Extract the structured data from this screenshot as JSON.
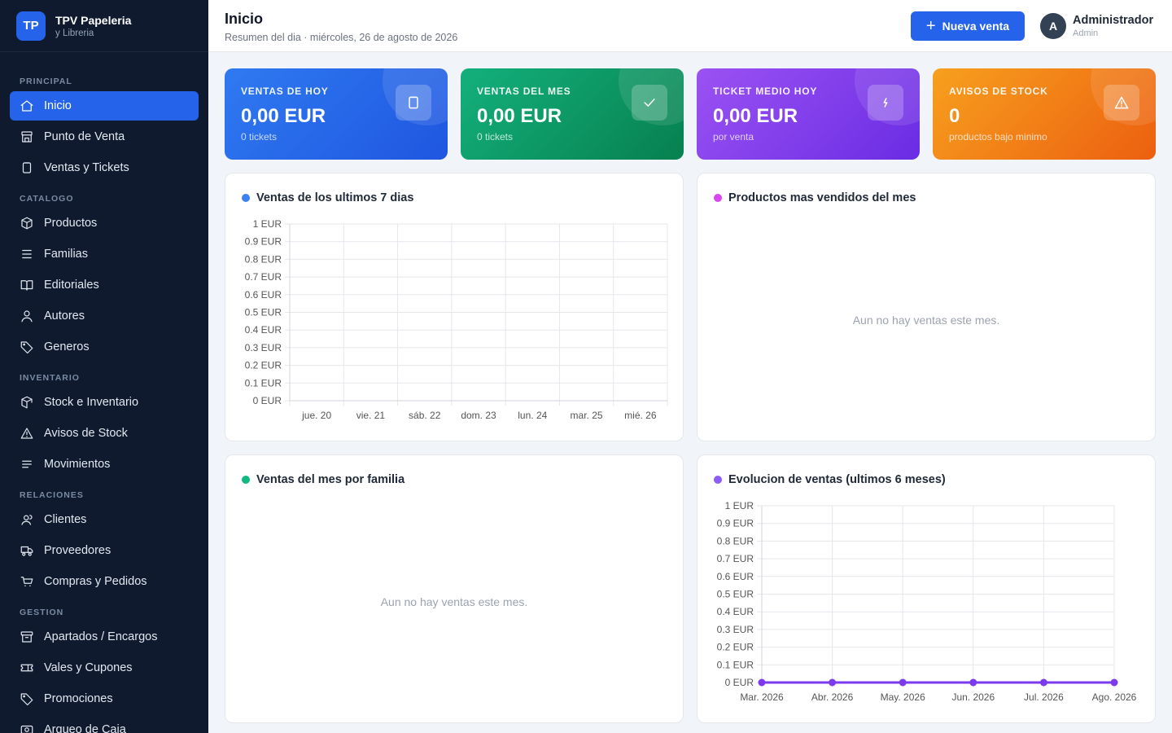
{
  "brand": {
    "logo": "TP",
    "title": "TPV Papeleria",
    "subtitle": "y Libreria"
  },
  "sidebar": {
    "sections": [
      {
        "title": "PRINCIPAL",
        "items": [
          {
            "label": "Inicio",
            "icon": "home-icon",
            "active": true
          },
          {
            "label": "Punto de Venta",
            "icon": "store-icon"
          },
          {
            "label": "Ventas y Tickets",
            "icon": "clipboard-icon"
          }
        ]
      },
      {
        "title": "CATALOGO",
        "items": [
          {
            "label": "Productos",
            "icon": "box-icon"
          },
          {
            "label": "Familias",
            "icon": "list-icon"
          },
          {
            "label": "Editoriales",
            "icon": "book-icon"
          },
          {
            "label": "Autores",
            "icon": "user-icon"
          },
          {
            "label": "Generos",
            "icon": "tag-icon"
          }
        ]
      },
      {
        "title": "INVENTARIO",
        "items": [
          {
            "label": "Stock e Inventario",
            "icon": "cube-icon"
          },
          {
            "label": "Avisos de Stock",
            "icon": "warning-icon"
          },
          {
            "label": "Movimientos",
            "icon": "lines-icon"
          }
        ]
      },
      {
        "title": "RELACIONES",
        "items": [
          {
            "label": "Clientes",
            "icon": "users-icon"
          },
          {
            "label": "Proveedores",
            "icon": "truck-icon"
          },
          {
            "label": "Compras y Pedidos",
            "icon": "cart-icon"
          }
        ]
      },
      {
        "title": "GESTION",
        "items": [
          {
            "label": "Apartados / Encargos",
            "icon": "archive-icon"
          },
          {
            "label": "Vales y Cupones",
            "icon": "ticket-icon"
          },
          {
            "label": "Promociones",
            "icon": "tag-icon"
          },
          {
            "label": "Arqueo de Caja",
            "icon": "cash-icon"
          }
        ]
      }
    ]
  },
  "header": {
    "title": "Inicio",
    "subtitle": "Resumen del dia · miércoles, 26 de agosto de 2026",
    "new_sale_label": "Nueva venta",
    "user_initial": "A",
    "user_name": "Administrador",
    "user_role": "Admin"
  },
  "stats": [
    {
      "label": "VENTAS DE HOY",
      "value": "0,00 EUR",
      "sub": "0 tickets",
      "icon": "clipboard-icon",
      "color": "#2563eb"
    },
    {
      "label": "VENTAS DEL MES",
      "value": "0,00 EUR",
      "sub": "0 tickets",
      "icon": "check-icon",
      "color": "#0f9f6e"
    },
    {
      "label": "TICKET MEDIO HOY",
      "value": "0,00 EUR",
      "sub": "por venta",
      "icon": "bolt-icon",
      "color": "#7c3aed"
    },
    {
      "label": "AVISOS DE STOCK",
      "value": "0",
      "sub": "productos bajo minimo",
      "icon": "warning-icon",
      "color": "#f07a14"
    }
  ],
  "panels": {
    "week": {
      "title": "Ventas de los ultimos 7 dias",
      "dot_color": "#3b82f6"
    },
    "top_products": {
      "title": "Productos mas vendidos del mes",
      "dot_color": "#d946ef",
      "empty": "Aun no hay ventas este mes."
    },
    "by_family": {
      "title": "Ventas del mes por familia",
      "dot_color": "#10b981",
      "empty": "Aun no hay ventas este mes."
    },
    "evolution": {
      "title": "Evolucion de ventas (ultimos 6 meses)",
      "dot_color": "#8b5cf6"
    }
  },
  "chart_data": [
    {
      "type": "bar",
      "title": "Ventas de los ultimos 7 dias",
      "categories": [
        "jue. 20",
        "vie. 21",
        "sáb. 22",
        "dom. 23",
        "lun. 24",
        "mar. 25",
        "mié. 26"
      ],
      "values": [
        0,
        0,
        0,
        0,
        0,
        0,
        0
      ],
      "ylim": [
        0,
        1
      ],
      "yticks": [
        "0 EUR",
        "0.1 EUR",
        "0.2 EUR",
        "0.3 EUR",
        "0.4 EUR",
        "0.5 EUR",
        "0.6 EUR",
        "0.7 EUR",
        "0.8 EUR",
        "0.9 EUR",
        "1 EUR"
      ],
      "grid": true
    },
    {
      "type": "line",
      "title": "Evolucion de ventas (ultimos 6 meses)",
      "categories": [
        "Mar. 2026",
        "Abr. 2026",
        "May. 2026",
        "Jun. 2026",
        "Jul. 2026",
        "Ago. 2026"
      ],
      "values": [
        0,
        0,
        0,
        0,
        0,
        0
      ],
      "ylim": [
        0,
        1
      ],
      "yticks": [
        "0 EUR",
        "0.1 EUR",
        "0.2 EUR",
        "0.3 EUR",
        "0.4 EUR",
        "0.5 EUR",
        "0.6 EUR",
        "0.7 EUR",
        "0.8 EUR",
        "0.9 EUR",
        "1 EUR"
      ],
      "grid": true,
      "color": "#7c3aed"
    }
  ]
}
